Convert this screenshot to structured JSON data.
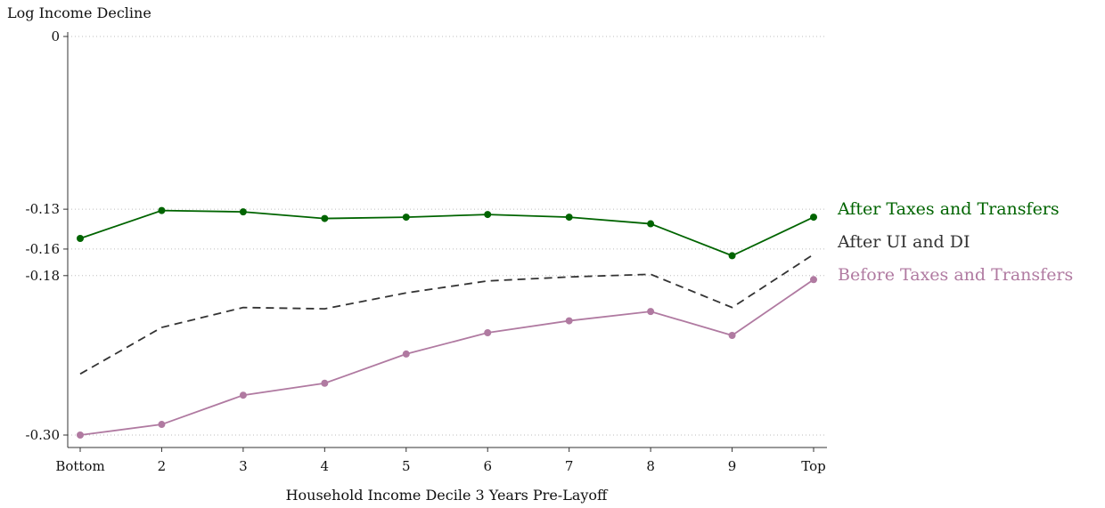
{
  "chart_data": {
    "type": "line",
    "title": "",
    "ylabel": "Log Income Decline",
    "xlabel": "Household Income Decile 3 Years Pre-Layoff",
    "categories": [
      "Bottom",
      "2",
      "3",
      "4",
      "5",
      "6",
      "7",
      "8",
      "9",
      "Top"
    ],
    "y_ticks": [
      {
        "value": 0,
        "label": "0"
      },
      {
        "value": -0.13,
        "label": "-0.13"
      },
      {
        "value": -0.16,
        "label": "-0.16"
      },
      {
        "value": -0.18,
        "label": "-0.18"
      },
      {
        "value": -0.3,
        "label": "-0.30"
      }
    ],
    "ylim": [
      -0.31,
      0.003
    ],
    "grid": true,
    "legend_placement": "right",
    "series": [
      {
        "name": "After Taxes and Transfers",
        "color": "#006400",
        "style": "solid",
        "markers": true,
        "values": [
          -0.152,
          -0.131,
          -0.132,
          -0.137,
          -0.136,
          -0.134,
          -0.136,
          -0.141,
          -0.165,
          -0.136
        ]
      },
      {
        "name": "After UI and DI",
        "color": "#333333",
        "style": "dashed",
        "markers": false,
        "values": [
          -0.254,
          -0.219,
          -0.204,
          -0.205,
          -0.193,
          -0.184,
          -0.181,
          -0.179,
          -0.204,
          -0.164
        ]
      },
      {
        "name": "Before Taxes and Transfers",
        "color": "#b07aa1",
        "style": "solid",
        "markers": true,
        "values": [
          -0.3,
          -0.292,
          -0.27,
          -0.261,
          -0.239,
          -0.223,
          -0.214,
          -0.207,
          -0.225,
          -0.183
        ]
      }
    ]
  }
}
